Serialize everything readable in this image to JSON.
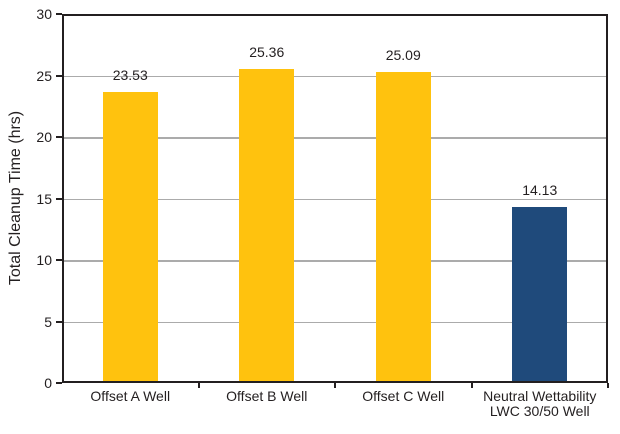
{
  "chart_data": {
    "type": "bar",
    "title": "",
    "ylabel": "Total Cleanup Time (hrs)",
    "xlabel": "",
    "categories": [
      "Offset A Well",
      "Offset B Well",
      "Offset C Well",
      "Neutral Wettability\nLWC 30/50 Well"
    ],
    "values": [
      23.53,
      25.36,
      25.09,
      14.13
    ],
    "value_labels": [
      "23.53",
      "25.36",
      "25.09",
      "14.13"
    ],
    "bar_colors": [
      "#ffc20e",
      "#ffc20e",
      "#ffc20e",
      "#1f4a7b"
    ],
    "ylim": [
      0,
      30
    ],
    "yticks": [
      0,
      5,
      10,
      15,
      20,
      25,
      30
    ],
    "grid": "horizontal",
    "gridline_color": "#ababab",
    "axis_color": "#231f20",
    "background_color": "#ffffff",
    "legend": "none"
  }
}
